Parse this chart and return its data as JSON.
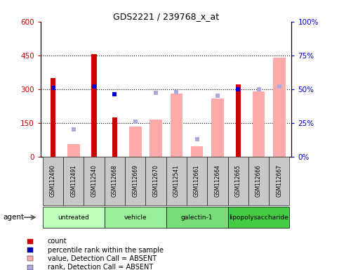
{
  "title": "GDS2221 / 239768_x_at",
  "samples": [
    "GSM112490",
    "GSM112491",
    "GSM112540",
    "GSM112668",
    "GSM112669",
    "GSM112670",
    "GSM112541",
    "GSM112661",
    "GSM112664",
    "GSM112665",
    "GSM112666",
    "GSM112667"
  ],
  "group_defs": [
    [
      0,
      2,
      "untreated",
      "#bbffbb"
    ],
    [
      3,
      5,
      "vehicle",
      "#99ee99"
    ],
    [
      6,
      8,
      "galectin-1",
      "#77dd77"
    ],
    [
      9,
      11,
      "lipopolysaccharide",
      "#44cc44"
    ]
  ],
  "count": [
    350,
    null,
    455,
    175,
    null,
    null,
    null,
    null,
    null,
    320,
    null,
    null
  ],
  "percentile_rank": [
    51,
    null,
    52,
    46,
    null,
    null,
    null,
    null,
    null,
    50,
    null,
    null
  ],
  "value_absent": [
    null,
    55,
    null,
    null,
    135,
    165,
    280,
    45,
    260,
    null,
    290,
    440
  ],
  "rank_absent": [
    null,
    20,
    null,
    null,
    26,
    47,
    48,
    13,
    45,
    null,
    50,
    52
  ],
  "ylim_left": [
    0,
    600
  ],
  "ylim_right": [
    0,
    100
  ],
  "yticks_left": [
    0,
    150,
    300,
    450,
    600
  ],
  "yticks_right": [
    0,
    25,
    50,
    75,
    100
  ],
  "ytick_labels_left": [
    "0",
    "150",
    "300",
    "450",
    "600"
  ],
  "ytick_labels_right": [
    "0%",
    "25%",
    "50%",
    "75%",
    "100%"
  ],
  "count_color": "#cc0000",
  "percentile_color": "#0000cc",
  "value_absent_color": "#ffaaaa",
  "rank_absent_color": "#aaaadd",
  "gray_color": "#c8c8c8",
  "agent_label": "agent"
}
